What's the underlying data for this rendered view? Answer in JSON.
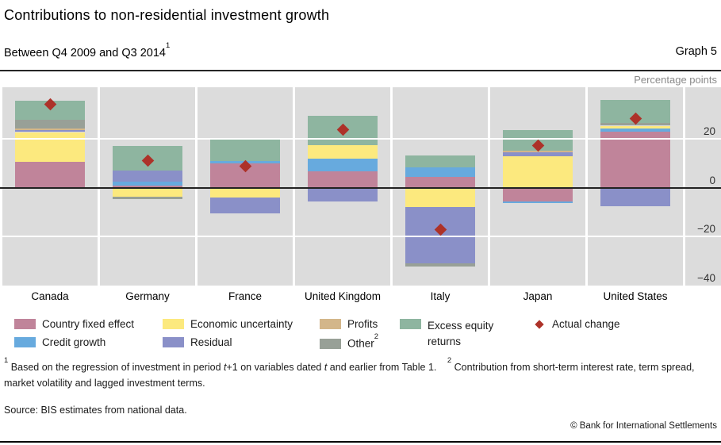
{
  "header": {
    "title": "Contributions to non-residential investment growth",
    "subtitle": "Between Q4 2009 and Q3 2014",
    "subtitle_superscript": "1",
    "graph_label": "Graph 5"
  },
  "chart_data": {
    "type": "stacked-bar",
    "unit_label": "Percentage points",
    "categories": [
      "Canada",
      "Germany",
      "France",
      "United Kingdom",
      "Italy",
      "Japan",
      "United States"
    ],
    "series": [
      {
        "key": "country_fixed_effect",
        "name": "Country fixed effect",
        "color": "#c0849a",
        "values": [
          10.6,
          0.9,
          9.9,
          6.6,
          4.5,
          -5.8,
          22.9
        ]
      },
      {
        "key": "credit_growth",
        "name": "Credit growth",
        "color": "#67aade",
        "values": [
          0,
          1.6,
          0.9,
          5.3,
          3.7,
          -0.6,
          1.3
        ]
      },
      {
        "key": "economic_uncertainty",
        "name": "Economic uncertainty",
        "color": "#fce97e",
        "values": [
          12.1,
          -3.7,
          -4.0,
          5.6,
          -7.8,
          12.8,
          1.1
        ]
      },
      {
        "key": "residual",
        "name": "Residual",
        "color": "#8a90c8",
        "values": [
          0.9,
          4.4,
          -6.5,
          -5.6,
          -23.0,
          1.5,
          -7.7
        ]
      },
      {
        "key": "profits",
        "name": "Profits",
        "color": "#d3b68a",
        "values": [
          0.5,
          0,
          0,
          0,
          0,
          0.8,
          0
        ]
      },
      {
        "key": "other",
        "name": "Other",
        "color": "#98a097",
        "values": [
          3.7,
          -0.9,
          0,
          0,
          -1.6,
          0,
          1.0
        ]
      },
      {
        "key": "excess_equity_returns",
        "name": "Excess equity returns",
        "color": "#8eb5a0",
        "values": [
          7.8,
          10.1,
          8.7,
          12.0,
          5.1,
          8.3,
          9.6
        ]
      }
    ],
    "actual_change": {
      "name": "Actual change",
      "color": "#ad3229",
      "values": [
        34.2,
        11.2,
        8.8,
        23.7,
        -17.3,
        17.3,
        28.3
      ]
    },
    "ylim": [
      -40,
      41
    ],
    "yticks": [
      20,
      0,
      -20,
      -40
    ],
    "gridlines": [
      20,
      -20
    ],
    "plot_background": "#dcdcdc",
    "legend_position": "bottom"
  },
  "legend": {
    "country_fixed_effect": "Country fixed effect",
    "economic_uncertainty": "Economic uncertainty",
    "profits": "Profits",
    "excess_equity_line1": "Excess equity",
    "excess_equity_line2": "returns",
    "actual_change": "Actual change",
    "credit_growth": "Credit growth",
    "residual": "Residual",
    "other": "Other",
    "other_superscript": "2"
  },
  "footnotes": {
    "fn1_marker": "1",
    "fn1_parts": [
      "Based on the regression of investment in period ",
      "t",
      "+1 on variables dated ",
      "t",
      " and earlier from Table 1.",
      "Contribution from short-term interest rate, term spread, market volatility and lagged investment terms."
    ],
    "fn2_marker": "2"
  },
  "source": "Source: BIS estimates from national data.",
  "copyright": "© Bank for International Settlements"
}
